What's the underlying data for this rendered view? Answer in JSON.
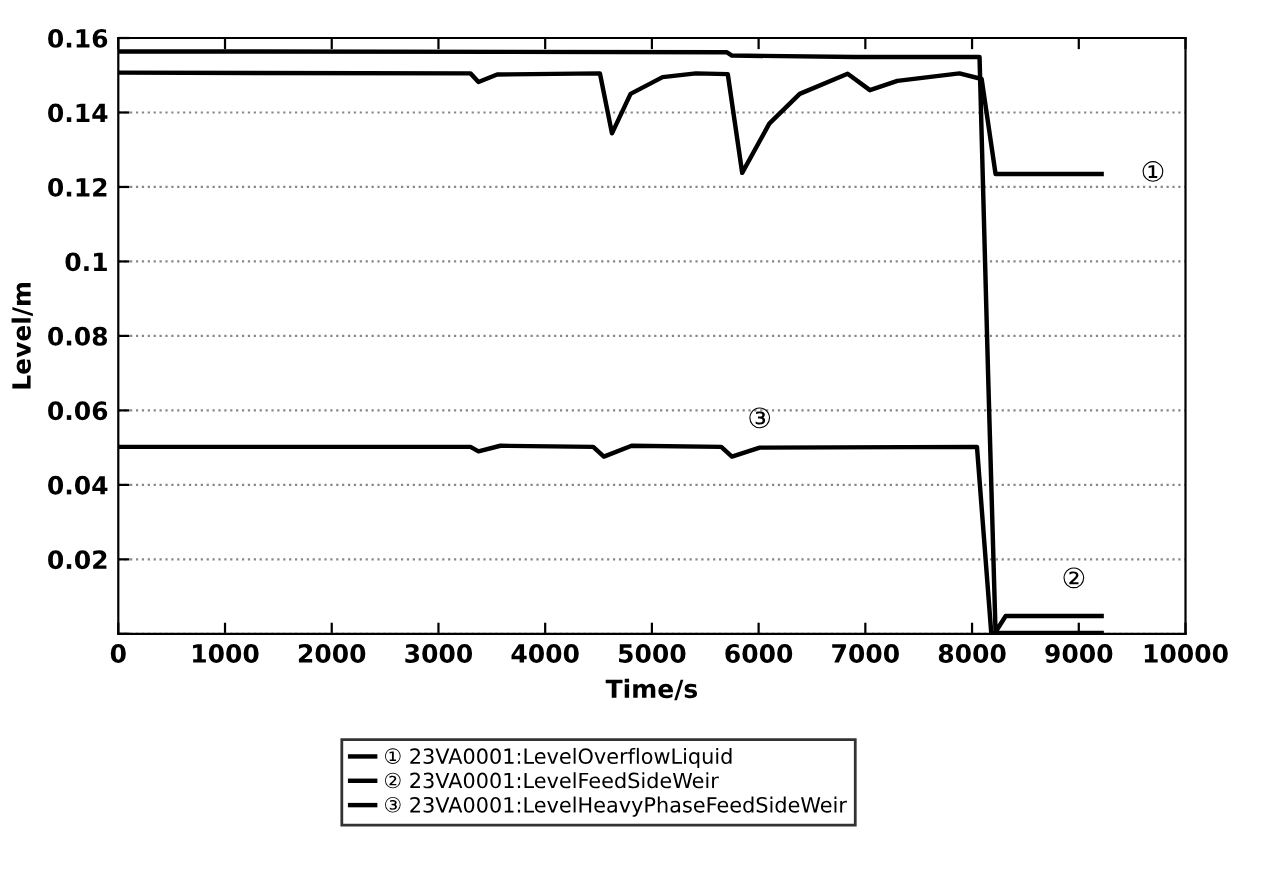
{
  "chart_data": {
    "type": "line",
    "xlabel": "Time/s",
    "ylabel": "Level/m",
    "xlim": [
      0,
      10000
    ],
    "xticks": [
      0,
      1000,
      2000,
      3000,
      4000,
      5000,
      6000,
      7000,
      8000,
      9000,
      10000
    ],
    "ylim": [
      0,
      0.16
    ],
    "yticks": [
      {
        "value": 0,
        "label": null
      },
      0.02,
      0.04,
      0.06,
      0.08,
      0.1,
      0.12,
      0.14,
      0.16
    ],
    "grid": "y",
    "legend": "bottom",
    "marker": "none",
    "line_style": "solid",
    "series": [
      {
        "name": "① 23VA0001:LevelOverflowLiquid",
        "color": "#000000",
        "x": [
          0,
          3300,
          3375,
          3550,
          4513,
          4626,
          4800,
          5100,
          5412,
          5711,
          5846,
          6100,
          6385,
          6834,
          7043,
          7300,
          7882,
          8090,
          8220,
          9214
        ],
        "values": [
          0.1507,
          0.1505,
          0.1482,
          0.1502,
          0.1505,
          0.1344,
          0.145,
          0.1495,
          0.1505,
          0.1503,
          0.1238,
          0.137,
          0.145,
          0.1504,
          0.146,
          0.1485,
          0.1505,
          0.149,
          0.1235,
          0.1235
        ]
      },
      {
        "name": "② 23VA0001:LevelFeedSideWeir",
        "color": "#000000",
        "x": [
          0,
          5700,
          5750,
          6900,
          8070,
          8150,
          8220,
          8315,
          9214
        ],
        "values": [
          0.1564,
          0.1562,
          0.1553,
          0.1549,
          0.1549,
          0.07,
          0.0005,
          0.0048,
          0.0048
        ]
      },
      {
        "name": "③ 23VA0001:LevelHeavyPhaseFeedSideWeir",
        "color": "#000000",
        "x": [
          0,
          3300,
          3375,
          3580,
          4450,
          4550,
          4810,
          5650,
          5750,
          6010,
          8046,
          8180,
          9214
        ],
        "values": [
          0.0502,
          0.0502,
          0.049,
          0.0505,
          0.0502,
          0.0476,
          0.0505,
          0.0502,
          0.0476,
          0.05,
          0.0502,
          0.0002,
          0.0002
        ]
      }
    ],
    "annotations": [
      "①",
      "②",
      "③"
    ]
  }
}
